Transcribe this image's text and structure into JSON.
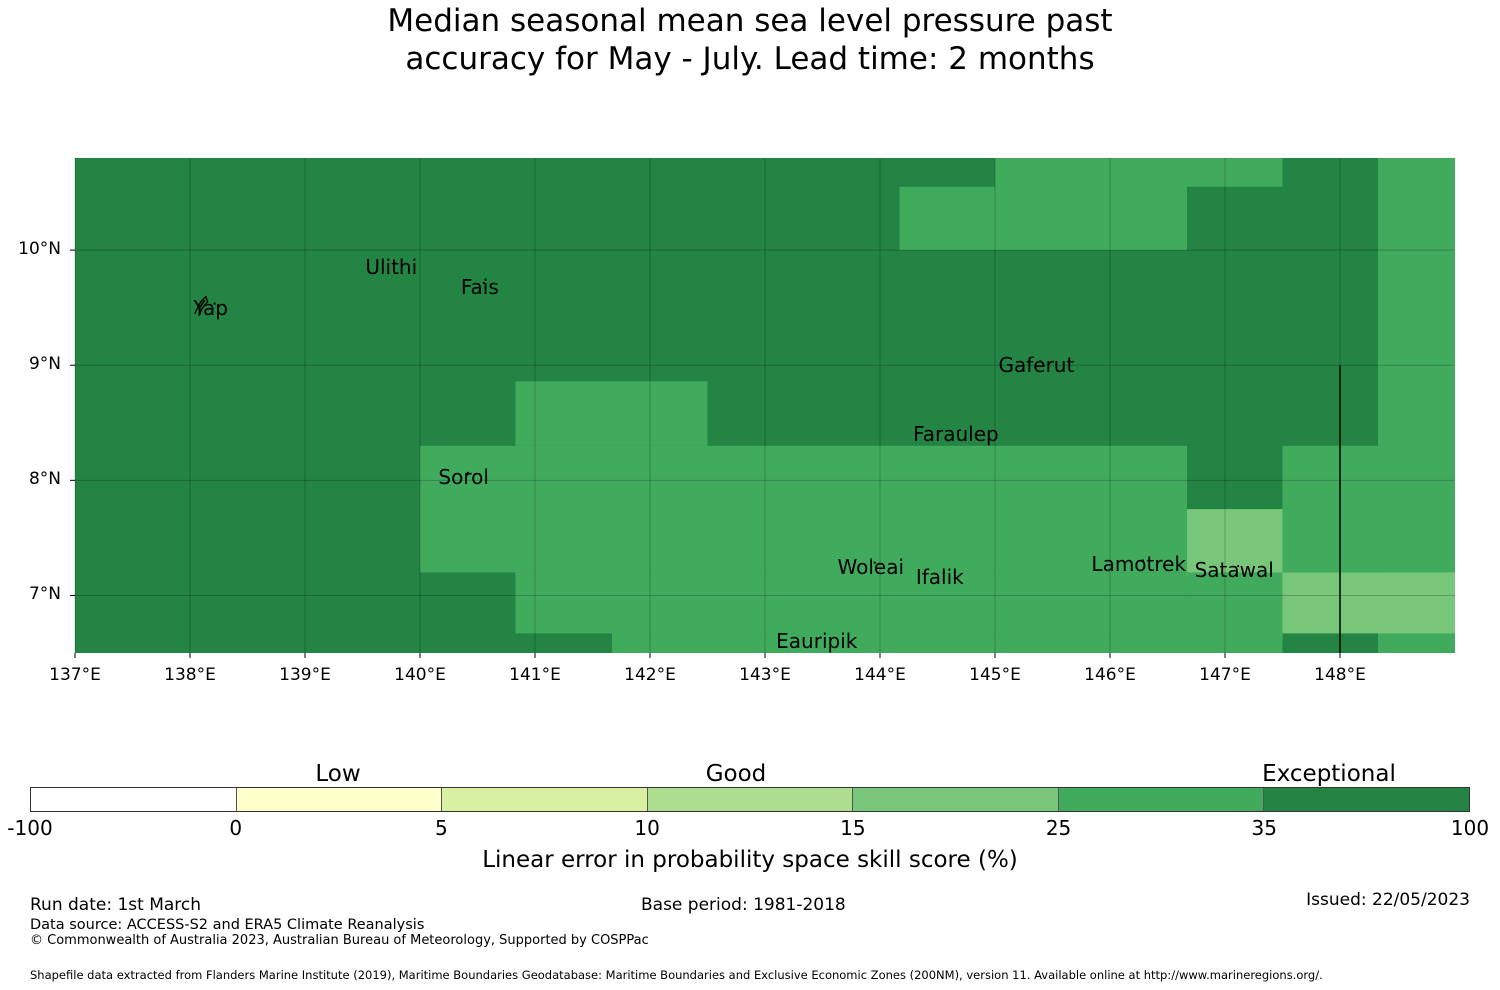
{
  "title": {
    "line1": "Median seasonal mean sea level pressure past",
    "line2": "accuracy for May - July. Lead time: 2 months"
  },
  "map": {
    "lon_range": [
      137.0,
      149.0
    ],
    "lat_range": [
      6.5,
      10.8
    ],
    "lon_ticks": [
      {
        "value": 137,
        "label": "137°E"
      },
      {
        "value": 138,
        "label": "138°E"
      },
      {
        "value": 139,
        "label": "139°E"
      },
      {
        "value": 140,
        "label": "140°E"
      },
      {
        "value": 141,
        "label": "141°E"
      },
      {
        "value": 142,
        "label": "142°E"
      },
      {
        "value": 143,
        "label": "143°E"
      },
      {
        "value": 144,
        "label": "144°E"
      },
      {
        "value": 145,
        "label": "145°E"
      },
      {
        "value": 146,
        "label": "146°E"
      },
      {
        "value": 147,
        "label": "147°E"
      },
      {
        "value": 148,
        "label": "148°E"
      }
    ],
    "lat_ticks": [
      {
        "value": 7,
        "label": "7°N"
      },
      {
        "value": 8,
        "label": "8°N"
      },
      {
        "value": 9,
        "label": "9°N"
      },
      {
        "value": 10,
        "label": "10°N"
      }
    ],
    "skill_cells": [
      {
        "lon0": 137.0,
        "lon1": 149.0,
        "lat0": 6.5,
        "lat1": 10.8,
        "category": "exceptional"
      },
      {
        "lon0": 144.17,
        "lon1": 145.0,
        "lat0": 10.0,
        "lat1": 10.55,
        "category": "very_good"
      },
      {
        "lon0": 145.0,
        "lon1": 146.67,
        "lat0": 10.0,
        "lat1": 10.8,
        "category": "very_good"
      },
      {
        "lon0": 146.67,
        "lon1": 147.5,
        "lat0": 10.55,
        "lat1": 10.8,
        "category": "very_good"
      },
      {
        "lon0": 148.33,
        "lon1": 149.0,
        "lat0": 6.5,
        "lat1": 10.8,
        "category": "very_good"
      },
      {
        "lon0": 140.83,
        "lon1": 142.5,
        "lat0": 8.3,
        "lat1": 8.86,
        "category": "very_good"
      },
      {
        "lon0": 140.0,
        "lon1": 146.67,
        "lat0": 7.2,
        "lat1": 8.3,
        "category": "very_good"
      },
      {
        "lon0": 140.83,
        "lon1": 146.67,
        "lat0": 6.67,
        "lat1": 7.2,
        "category": "very_good"
      },
      {
        "lon0": 141.67,
        "lon1": 146.67,
        "lat0": 6.5,
        "lat1": 6.67,
        "category": "very_good"
      },
      {
        "lon0": 146.67,
        "lon1": 147.5,
        "lat0": 6.5,
        "lat1": 7.75,
        "category": "very_good"
      },
      {
        "lon0": 147.5,
        "lon1": 148.33,
        "lat0": 7.2,
        "lat1": 8.3,
        "category": "very_good"
      },
      {
        "lon0": 146.67,
        "lon1": 147.5,
        "lat0": 7.2,
        "lat1": 7.75,
        "category": "good"
      },
      {
        "lon0": 147.5,
        "lon1": 149.0,
        "lat0": 6.67,
        "lat1": 7.2,
        "category": "good"
      }
    ],
    "places": [
      {
        "name": "Yap",
        "lon": 138.18,
        "lat": 9.5
      },
      {
        "name": "Ulithi",
        "lon": 139.75,
        "lat": 9.85
      },
      {
        "name": "Fais",
        "lon": 140.52,
        "lat": 9.68
      },
      {
        "name": "Gaferut",
        "lon": 145.36,
        "lat": 9.0
      },
      {
        "name": "Faraulep",
        "lon": 144.66,
        "lat": 8.4
      },
      {
        "name": "Sorol",
        "lon": 140.38,
        "lat": 8.03
      },
      {
        "name": "Woleai",
        "lon": 143.92,
        "lat": 7.25
      },
      {
        "name": "Ifalik",
        "lon": 144.52,
        "lat": 7.16
      },
      {
        "name": "Lamotrek",
        "lon": 146.25,
        "lat": 7.27
      },
      {
        "name": "Satawal",
        "lon": 147.08,
        "lat": 7.22
      },
      {
        "name": "Eauripik",
        "lon": 143.45,
        "lat": 6.6
      }
    ],
    "boundary_lon": 148.0,
    "boundary_lat_range": [
      6.5,
      9.0
    ]
  },
  "legend": {
    "categories": [
      "Low",
      "Good",
      "Exceptional"
    ],
    "colors": {
      "none": "#ffffff",
      "low1": "#ffffcc",
      "low2": "#d9f0a3",
      "fair": "#addd8e",
      "good": "#78c679",
      "very_good": "#41ab5d",
      "exceptional": "#238443"
    },
    "segments": [
      "none",
      "low1",
      "low2",
      "fair",
      "good",
      "very_good",
      "exceptional"
    ],
    "ticks": [
      "-100",
      "0",
      "5",
      "10",
      "15",
      "25",
      "35",
      "100"
    ],
    "label": "Linear error in probability space skill score (%)"
  },
  "footer": {
    "run_date": "Run date: 1st March",
    "base_period": "Base period: 1981-2018",
    "issued": "Issued: 22/05/2023",
    "data_source": "Data source: ACCESS-S2 and ERA5 Climate Reanalysis",
    "copyright": "© Commonwealth of Australia 2023, Australian Bureau of Meteorology, Supported by COSPPac",
    "shapefile": "Shapefile data extracted from Flanders Marine Institute (2019), Maritime Boundaries Geodatabase: Maritime Boundaries and Exclusive Economic Zones (200NM), version 11. Available online at http://www.marineregions.org/."
  }
}
